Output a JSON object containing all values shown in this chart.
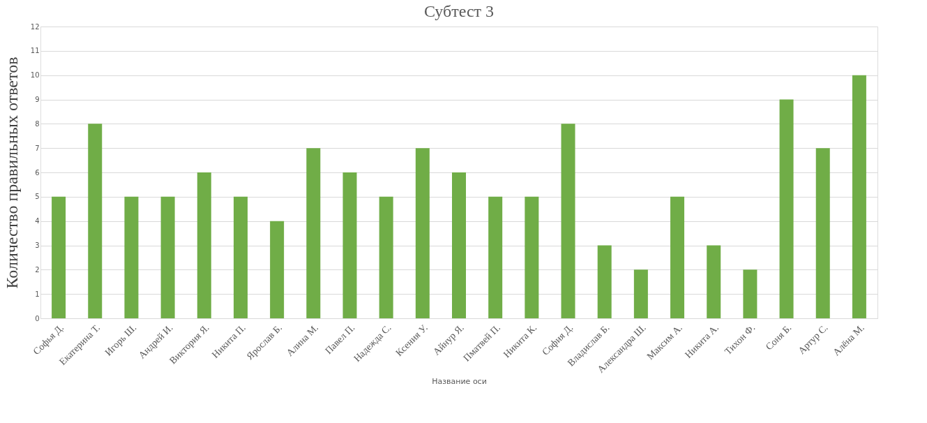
{
  "chart_data": {
    "type": "bar",
    "title": "Субтест 3",
    "xlabel": "Название оси",
    "ylabel": "Количество правильных ответов",
    "categories": [
      "Софья Д.",
      "Екатерина Т.",
      "Игорь Ш.",
      "Андрей И.",
      "Виктория Я.",
      "Никита П.",
      "Ярослав Б.",
      "Алина М.",
      "Павел П.",
      "Надежда С.",
      "Ксения У.",
      "Айнур Я.",
      "Пматвей П.",
      "Никита К.",
      "София Д.",
      "Владислав Б.",
      "Александра Ш.",
      "Максим А.",
      "Никита А.",
      "Тихон Ф.",
      "Соня Б.",
      "Артур С.",
      "Алёна  М."
    ],
    "values": [
      5,
      8,
      5,
      5,
      6,
      5,
      4,
      7,
      6,
      5,
      7,
      6,
      5,
      5,
      8,
      3,
      2,
      5,
      3,
      2,
      9,
      7,
      10
    ],
    "color": "#70ad47",
    "ylim": [
      0,
      12
    ],
    "yticks": [
      0,
      1,
      2,
      3,
      4,
      5,
      6,
      7,
      8,
      9,
      10,
      11,
      12
    ],
    "grid": "y"
  }
}
